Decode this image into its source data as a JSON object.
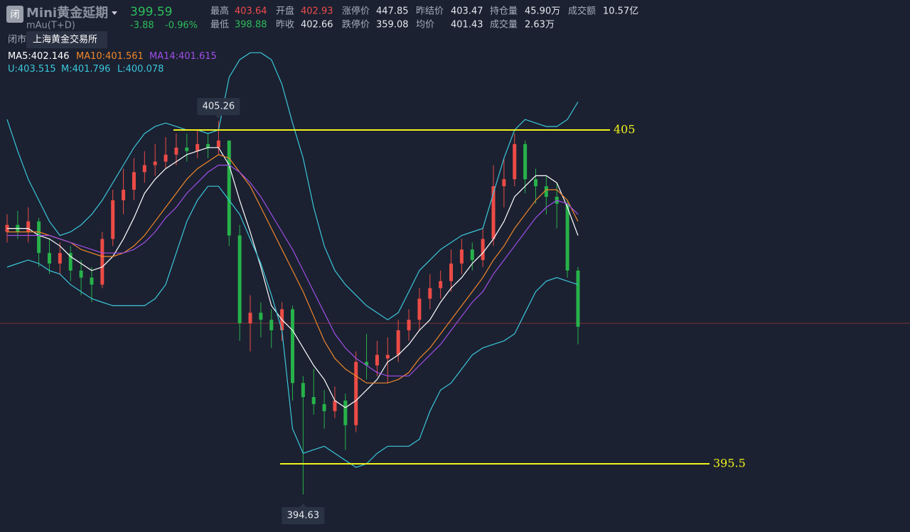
{
  "header": {
    "icon": "闭",
    "title": "Mini黄金延期",
    "code": "mAu(T+D)",
    "price": "399.59",
    "change": "-3.88",
    "change_pct": "-0.96%",
    "status": "闭市",
    "exchange": "上海黄金交易所",
    "stats": [
      [
        {
          "label": "最高",
          "value": "403.64",
          "tone": "up"
        },
        {
          "label": "开盘",
          "value": "402.93",
          "tone": "up"
        },
        {
          "label": "涨停价",
          "value": "447.85",
          "tone": "plain"
        },
        {
          "label": "昨结价",
          "value": "403.47",
          "tone": "plain"
        },
        {
          "label": "持仓量",
          "value": "45.90万",
          "tone": "plain"
        },
        {
          "label": "成交额",
          "value": "10.57亿",
          "tone": "plain"
        }
      ],
      [
        {
          "label": "最低",
          "value": "398.88",
          "tone": "down"
        },
        {
          "label": "昨收",
          "value": "402.66",
          "tone": "plain"
        },
        {
          "label": "跌停价",
          "value": "359.08",
          "tone": "plain"
        },
        {
          "label": "均价",
          "value": "401.43",
          "tone": "plain"
        },
        {
          "label": "成交量",
          "value": "2.63万",
          "tone": "plain"
        }
      ]
    ]
  },
  "chart_data": {
    "type": "candlestick",
    "ylim": [
      393.56,
      408.7
    ],
    "up_color": "#ec4b46",
    "down_color": "#27b14a",
    "reference_line": 399.5,
    "hlines": [
      405,
      395.5
    ],
    "hline_color": "#f2f21c",
    "ohlc": [
      [
        402.1,
        402.6,
        401.8,
        402.3
      ],
      [
        402.3,
        402.7,
        401.9,
        402.1
      ],
      [
        402.1,
        402.8,
        401.8,
        402.4
      ],
      [
        402.4,
        402.5,
        401.1,
        401.5
      ],
      [
        401.5,
        401.9,
        400.9,
        401.2
      ],
      [
        401.2,
        401.8,
        400.9,
        401.5
      ],
      [
        401.5,
        401.7,
        400.7,
        401.0
      ],
      [
        401.0,
        401.3,
        400.3,
        400.8
      ],
      [
        400.8,
        401.1,
        400.1,
        400.6
      ],
      [
        400.6,
        402.1,
        400.5,
        401.9
      ],
      [
        401.9,
        403.3,
        401.7,
        403.0
      ],
      [
        403.0,
        403.9,
        402.6,
        403.3
      ],
      [
        403.3,
        404.2,
        403.0,
        403.8
      ],
      [
        403.8,
        404.4,
        403.5,
        404.0
      ],
      [
        404.0,
        404.6,
        403.7,
        404.1
      ],
      [
        404.1,
        404.8,
        403.9,
        404.3
      ],
      [
        404.3,
        404.9,
        404.0,
        404.5
      ],
      [
        404.5,
        404.9,
        404.1,
        404.4
      ],
      [
        404.4,
        405.0,
        404.2,
        404.6
      ],
      [
        404.6,
        404.9,
        404.2,
        404.5
      ],
      [
        404.5,
        405.26,
        404.3,
        404.7
      ],
      [
        404.7,
        404.7,
        401.7,
        402.0
      ],
      [
        402.0,
        402.3,
        399.0,
        399.5
      ],
      [
        399.5,
        400.3,
        398.7,
        399.8
      ],
      [
        399.8,
        400.1,
        399.1,
        399.6
      ],
      [
        399.6,
        399.9,
        398.8,
        399.3
      ],
      [
        399.3,
        400.1,
        399.0,
        399.9
      ],
      [
        399.9,
        400.0,
        397.3,
        397.8
      ],
      [
        397.8,
        398.0,
        394.63,
        397.4
      ],
      [
        397.4,
        398.2,
        396.9,
        397.2
      ],
      [
        397.2,
        397.6,
        396.5,
        397.0
      ],
      [
        397.0,
        397.7,
        396.8,
        397.3
      ],
      [
        397.3,
        397.5,
        395.9,
        396.6
      ],
      [
        396.6,
        398.7,
        396.4,
        398.4
      ],
      [
        398.4,
        399.2,
        397.9,
        398.3
      ],
      [
        398.3,
        399.0,
        398.0,
        398.6
      ],
      [
        398.5,
        399.1,
        397.8,
        398.6
      ],
      [
        398.6,
        399.6,
        398.4,
        399.3
      ],
      [
        399.3,
        399.9,
        399.0,
        399.6
      ],
      [
        399.6,
        400.5,
        399.3,
        400.2
      ],
      [
        400.2,
        400.9,
        399.9,
        400.5
      ],
      [
        400.5,
        401.0,
        400.2,
        400.7
      ],
      [
        400.7,
        401.6,
        400.4,
        401.2
      ],
      [
        401.2,
        401.9,
        400.9,
        401.6
      ],
      [
        401.6,
        401.8,
        401.0,
        401.3
      ],
      [
        401.3,
        402.2,
        401.1,
        401.9
      ],
      [
        401.9,
        404.0,
        401.7,
        403.4
      ],
      [
        403.4,
        404.2,
        402.8,
        403.6
      ],
      [
        403.6,
        404.9,
        403.4,
        404.6
      ],
      [
        404.6,
        404.7,
        403.2,
        403.6
      ],
      [
        403.6,
        403.9,
        402.9,
        403.4
      ],
      [
        403.4,
        403.7,
        402.6,
        403.1
      ],
      [
        403.1,
        403.5,
        402.2,
        402.9
      ],
      [
        402.9,
        403.0,
        400.8,
        401.0
      ],
      [
        401.0,
        401.1,
        398.9,
        399.4
      ]
    ],
    "series": [
      {
        "name": "MA5",
        "color": "#ffffff",
        "legend_value": 402.146,
        "values": [
          402.2,
          402.2,
          402.2,
          402.0,
          401.9,
          401.7,
          401.4,
          401.2,
          401.0,
          401.1,
          401.4,
          401.9,
          402.5,
          403.2,
          403.6,
          403.9,
          404.1,
          404.3,
          404.4,
          404.5,
          404.5,
          404.0,
          403.0,
          402.1,
          401.1,
          400.0,
          399.6,
          399.3,
          398.8,
          398.3,
          397.9,
          397.3,
          397.1,
          397.3,
          397.6,
          397.9,
          398.4,
          398.6,
          398.9,
          399.3,
          399.6,
          400.1,
          400.5,
          400.8,
          401.2,
          401.5,
          401.9,
          402.4,
          403.1,
          403.4,
          403.7,
          403.7,
          403.5,
          402.8,
          402.0
        ]
      },
      {
        "name": "MA10",
        "color": "#f0862a",
        "legend_value": 401.561,
        "values": [
          402.1,
          402.1,
          402.1,
          402.1,
          402.0,
          401.9,
          401.8,
          401.6,
          401.5,
          401.4,
          401.4,
          401.5,
          401.7,
          402.0,
          402.4,
          402.8,
          403.2,
          403.6,
          403.9,
          404.1,
          404.3,
          404.2,
          403.8,
          403.4,
          402.8,
          402.2,
          401.6,
          401.0,
          400.4,
          399.7,
          399.0,
          398.5,
          398.2,
          398.0,
          397.8,
          397.8,
          397.8,
          397.9,
          398.1,
          398.5,
          398.8,
          399.2,
          399.6,
          400.0,
          400.4,
          400.8,
          401.3,
          401.7,
          402.2,
          402.6,
          403.0,
          403.3,
          403.3,
          403.0,
          402.4
        ]
      },
      {
        "name": "MA14",
        "color": "#a04ee6",
        "legend_value": 401.615,
        "values": [
          402.0,
          402.0,
          402.0,
          402.0,
          402.0,
          401.9,
          401.8,
          401.7,
          401.6,
          401.5,
          401.5,
          401.5,
          401.6,
          401.8,
          402.1,
          402.5,
          402.8,
          403.2,
          403.5,
          403.8,
          404.0,
          404.0,
          403.8,
          403.5,
          403.1,
          402.6,
          402.1,
          401.6,
          401.0,
          400.4,
          399.8,
          399.2,
          398.8,
          398.5,
          398.3,
          398.1,
          398.0,
          398.0,
          398.0,
          398.3,
          398.6,
          398.9,
          399.3,
          399.7,
          400.1,
          400.4,
          400.9,
          401.3,
          401.7,
          402.1,
          402.5,
          402.8,
          403.0,
          402.9,
          402.6
        ]
      },
      {
        "name": "U",
        "color": "#3cc6da",
        "legend_value": 403.515,
        "values": [
          405.3,
          404.4,
          403.6,
          403.0,
          402.4,
          402.0,
          402.1,
          402.3,
          402.6,
          403.0,
          403.5,
          404.0,
          404.5,
          404.9,
          405.1,
          405.2,
          405.1,
          405.0,
          405.0,
          404.9,
          405.0,
          406.5,
          407.0,
          407.2,
          407.2,
          407.0,
          406.3,
          405.2,
          404.2,
          402.8,
          401.7,
          401.0,
          400.6,
          400.3,
          400.0,
          399.8,
          399.6,
          399.8,
          400.4,
          401.0,
          401.3,
          401.6,
          401.8,
          402.0,
          402.1,
          402.2,
          403.2,
          404.2,
          405.0,
          405.3,
          405.2,
          405.1,
          405.1,
          405.3,
          405.8
        ]
      },
      {
        "name": "M",
        "color": "#3cc6da",
        "legend_value": 401.796
      },
      {
        "name": "L",
        "color": "#3cc6da",
        "legend_value": 400.078,
        "values": [
          401.1,
          401.2,
          401.3,
          401.2,
          401.0,
          400.9,
          400.6,
          400.4,
          400.2,
          400.1,
          400.0,
          400.0,
          400.0,
          400.0,
          400.2,
          400.6,
          401.5,
          402.4,
          403.0,
          403.4,
          403.4,
          403.0,
          402.6,
          401.9,
          401.2,
          400.3,
          399.3,
          396.5,
          395.8,
          395.9,
          396.0,
          395.8,
          395.6,
          395.4,
          395.5,
          395.8,
          396.0,
          396.0,
          396.0,
          396.2,
          397.0,
          397.6,
          397.8,
          398.2,
          398.6,
          398.8,
          398.9,
          399.0,
          399.2,
          399.8,
          400.4,
          400.7,
          400.8,
          400.7,
          400.6
        ]
      }
    ]
  }
}
